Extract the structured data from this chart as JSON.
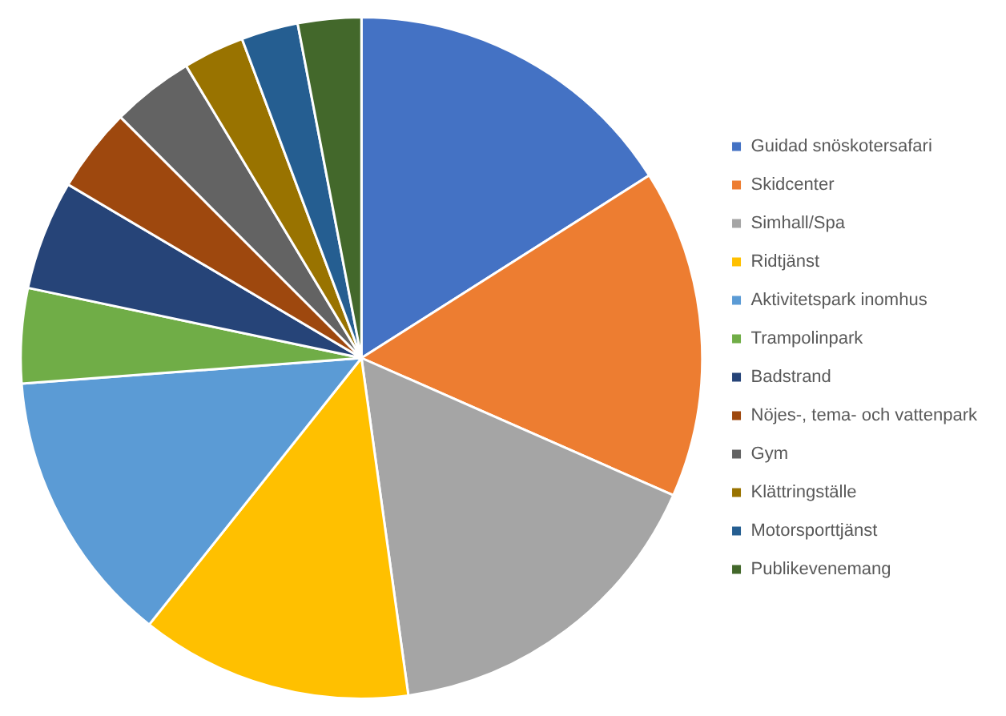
{
  "chart_data": {
    "type": "pie",
    "legend": "right",
    "categories": [
      "Guidad snöskotersafari",
      "Skidcenter",
      "Simhall/Spa",
      "Ridtjänst",
      "Aktivitetspark inomhus",
      "Trampolinpark",
      "Badstrand",
      "Nöjes-, tema- och vattenpark",
      "Gym",
      "Klättringställe",
      "Motorsporttjänst",
      "Publikevenemang"
    ],
    "values": [
      16.0,
      15.6,
      16.2,
      12.9,
      13.1,
      4.5,
      5.2,
      4.0,
      3.9,
      2.9,
      2.7,
      3.0
    ],
    "colors": [
      "#4472c4",
      "#ed7d31",
      "#a5a5a5",
      "#ffc000",
      "#5b9bd5",
      "#70ad47",
      "#264478",
      "#9e480e",
      "#636363",
      "#997300",
      "#255e91",
      "#43682b"
    ]
  }
}
